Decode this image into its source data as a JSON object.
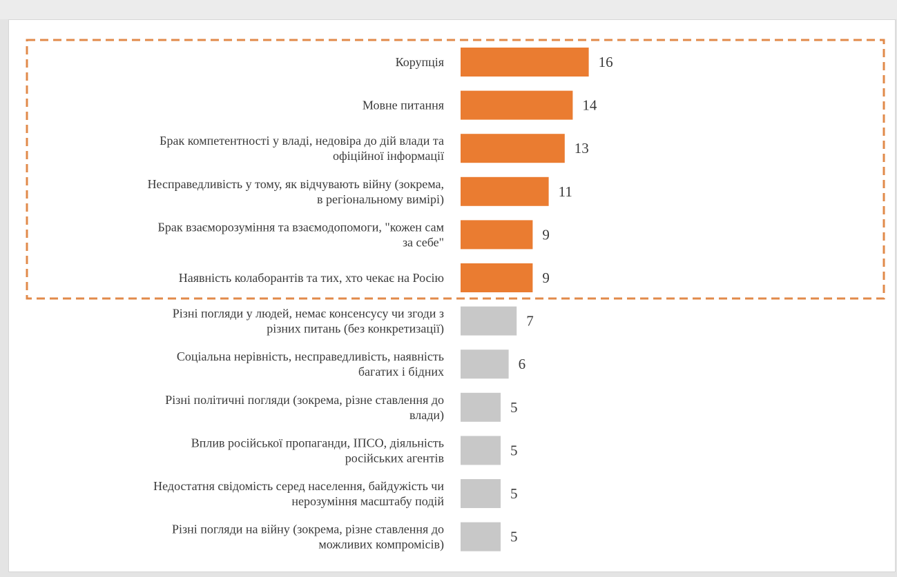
{
  "colors": {
    "highlight": "#ea7c31",
    "other": "#c8c8c8",
    "frame_dash": "#e18a4a"
  },
  "chart_data": {
    "type": "bar",
    "orientation": "horizontal",
    "categories": [
      [
        "Корупція"
      ],
      [
        "Мовне питання"
      ],
      [
        "Брак компетентності у владі, недовіра до дій влади та",
        "офіційної інформації"
      ],
      [
        "Несправедливість у тому, як відчувають війну (зокрема,",
        "в регіональному вимірі)"
      ],
      [
        "Брак взаєморозуміння та взаємодопомоги, \"кожен сам",
        "за себе\""
      ],
      [
        "Наявність колаборантів та тих, хто чекає на Росію"
      ],
      [
        "Різні погляди у людей, немає консенсусу чи згоди з",
        "різних питань (без конкретизації)"
      ],
      [
        "Соціальна нерівність, несправедливість, наявність",
        "багатих і бідних"
      ],
      [
        "Різні політичні погляди (зокрема, різне ставлення до",
        "влади)"
      ],
      [
        "Вплив російської пропаганди, ІПСО, діяльність",
        "російських агентів"
      ],
      [
        "Недостатня свідомість серед населення,  байдужість чи",
        "нерозуміння масштабу подій"
      ],
      [
        "Різні погляди на війну (зокрема, різне ставлення до",
        "можливих компромісів)"
      ]
    ],
    "values": [
      16,
      14,
      13,
      11,
      9,
      9,
      7,
      6,
      5,
      5,
      5,
      5
    ],
    "highlighted_count": 6,
    "xlim": [
      0,
      16
    ],
    "grid": false,
    "legend": "none"
  }
}
